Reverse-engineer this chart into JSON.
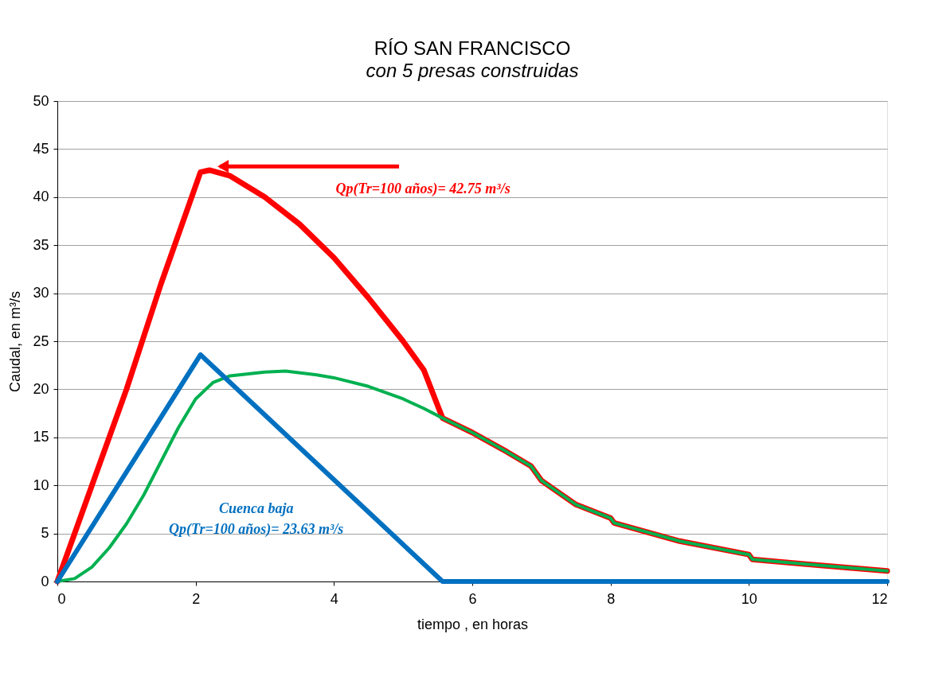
{
  "chart_data": {
    "type": "line",
    "title": "RÍO SAN FRANCISCO",
    "subtitle": "con 5 presas construidas",
    "xlabel": "tiempo , en horas",
    "ylabel": "Caudal, en m³/s",
    "xlim": [
      0,
      12
    ],
    "xticks": [
      0,
      2,
      4,
      6,
      8,
      10,
      12
    ],
    "ylim": [
      0,
      50
    ],
    "yticks": [
      0,
      5,
      10,
      15,
      20,
      25,
      30,
      35,
      40,
      45,
      50
    ],
    "grid": "y",
    "legend": false,
    "marker": "none",
    "line_style": "solid",
    "series": [
      {
        "color": "#ff0000",
        "x": [
          0,
          0.5,
          1,
          1.5,
          2.07,
          2.2,
          2.5,
          3,
          3.5,
          4,
          4.5,
          5,
          5.3,
          5.57,
          6,
          6.1,
          6.5,
          6.85,
          7,
          7.5,
          8,
          8.05,
          9,
          10,
          10.05,
          11,
          12
        ],
        "values": [
          0,
          10,
          20,
          31,
          42.6,
          42.8,
          42.2,
          40,
          37.2,
          33.7,
          29.5,
          25,
          22,
          17,
          15.5,
          15.1,
          13.5,
          12,
          10.5,
          8,
          6.6,
          6.1,
          4.2,
          2.8,
          2.3,
          1.7,
          1.1
        ]
      },
      {
        "color": "#00b050",
        "x": [
          0,
          0.25,
          0.5,
          0.75,
          1,
          1.25,
          1.5,
          1.75,
          2,
          2.25,
          2.5,
          3,
          3.3,
          3.75,
          4,
          4.5,
          5,
          5.3,
          5.57,
          6,
          6.1,
          6.5,
          6.85,
          7,
          7.5,
          8,
          8.05,
          9,
          10,
          10.05,
          11,
          12
        ],
        "values": [
          0,
          0.3,
          1.5,
          3.5,
          6,
          9,
          12.5,
          16,
          19,
          20.7,
          21.4,
          21.8,
          21.9,
          21.5,
          21.2,
          20.3,
          19,
          18,
          17,
          15.5,
          15.1,
          13.5,
          12,
          10.5,
          8,
          6.6,
          6.1,
          4.2,
          2.8,
          2.3,
          1.7,
          1.1
        ]
      },
      {
        "color": "#0070c0",
        "x": [
          0,
          2.07,
          5.57,
          12
        ],
        "values": [
          0,
          23.6,
          0,
          0
        ]
      }
    ],
    "annotations": [
      {
        "text": "Qp(Tr=100 años)= 42.75  m³/s",
        "x": 2.35,
        "y": 43.2
      },
      "Cuenca baja\nQp(Tr=100 años)= 23.63  m³/s"
    ]
  }
}
